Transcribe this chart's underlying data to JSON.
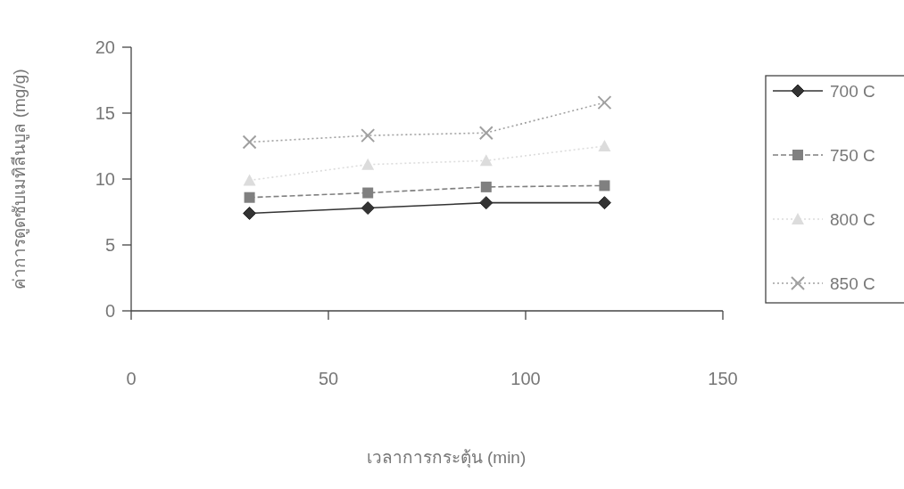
{
  "chart_data": {
    "type": "line",
    "xlabel": "เวลาการกระตุ้น (min)",
    "ylabel": "ค่าการดูดซับเมทิลีนบูล (mg/g)",
    "x": [
      30,
      60,
      90,
      120
    ],
    "series": [
      {
        "name": "700 C",
        "color": "#333333",
        "marker": "diamond",
        "line_style": "solid",
        "values": [
          7.4,
          7.8,
          8.2,
          8.2
        ]
      },
      {
        "name": "750 C",
        "color": "#808080",
        "marker": "square",
        "line_style": "dashed",
        "values": [
          8.6,
          8.95,
          9.4,
          9.5
        ]
      },
      {
        "name": "800 C",
        "color": "#dcdcdc",
        "marker": "triangle",
        "line_style": "dotted",
        "values": [
          9.9,
          11.1,
          11.4,
          12.5
        ]
      },
      {
        "name": "850 C",
        "color": "#a0a0a0",
        "marker": "cross",
        "line_style": "dotted",
        "values": [
          12.8,
          13.3,
          13.5,
          15.8
        ]
      }
    ],
    "xlim": [
      0,
      150
    ],
    "xticks": [
      0,
      50,
      100,
      150
    ],
    "ylim": [
      0,
      20
    ],
    "yticks": [
      0,
      5,
      10,
      15,
      20
    ],
    "grid": false,
    "legend": "right"
  }
}
